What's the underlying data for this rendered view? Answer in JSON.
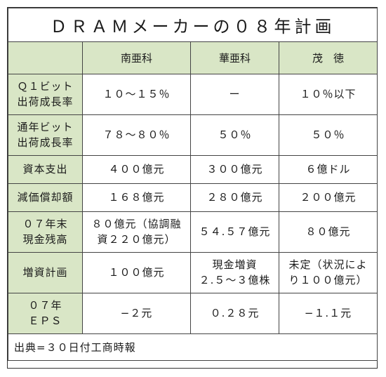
{
  "title": "ＤＲＡＭメーカーの０８年計画",
  "columns": [
    "",
    "南亜科",
    "華亜科",
    "茂　徳"
  ],
  "rows": [
    {
      "label": [
        "Ｑ１ビット",
        "出荷成長率"
      ],
      "values": [
        [
          "１０〜１５％"
        ],
        [
          "ー"
        ],
        [
          "１０％以下"
        ]
      ]
    },
    {
      "label": [
        "通年ビット",
        "出荷成長率"
      ],
      "values": [
        [
          "７８〜８０％"
        ],
        [
          "５０％"
        ],
        [
          "５０％"
        ]
      ]
    },
    {
      "label": [
        "資本支出"
      ],
      "values": [
        [
          "４００億元"
        ],
        [
          "３００億元"
        ],
        [
          "６億ドル"
        ]
      ]
    },
    {
      "label": [
        "減価償却額"
      ],
      "values": [
        [
          "１６８億元"
        ],
        [
          "２８０億元"
        ],
        [
          "２００億元"
        ]
      ]
    },
    {
      "label": [
        "０７年末",
        "現金残高"
      ],
      "values": [
        [
          "８０億元（協調融",
          "資２２０億元）"
        ],
        [
          "５４.５７億元"
        ],
        [
          "８０億元"
        ]
      ]
    },
    {
      "label": [
        "増資計画"
      ],
      "values": [
        [
          "１００億元"
        ],
        [
          "現金増資",
          "２.５〜３億株"
        ],
        [
          "未定（状況によ",
          "り１００億元）"
        ]
      ]
    },
    {
      "label": [
        "０７年",
        "ＥＰＳ"
      ],
      "values": [
        [
          "−２元"
        ],
        [
          "０.２８元"
        ],
        [
          "−１.１元"
        ]
      ]
    }
  ],
  "source": "出典=３０日付工商時報",
  "colors": {
    "header_bg": "#d9e6c6",
    "border": "#444444"
  }
}
